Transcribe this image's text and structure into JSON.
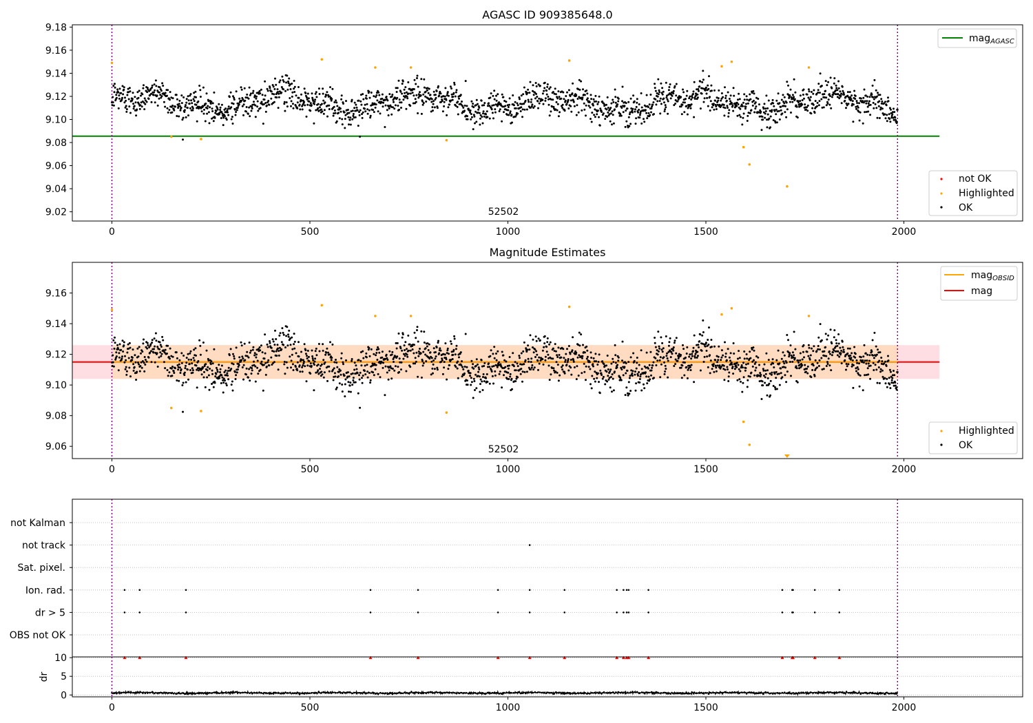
{
  "colors": {
    "ok": "#000000",
    "highlighted": "#FFA500",
    "not_ok": "#FF0000",
    "agasc_line": "#008000",
    "obsid_line": "#FFA500",
    "mag_line": "#FF0000",
    "band_fill": "#FFB6C1",
    "band_obsid_fill": "#FFDAB9",
    "boundary": "#800080"
  },
  "chart_data": [
    {
      "type": "scatter",
      "title": "AGASC ID 909385648.0",
      "xlabel": "",
      "ylabel": "",
      "xlim": [
        -100,
        2300
      ],
      "ylim": [
        9.012,
        9.182
      ],
      "xticks": [
        0,
        500,
        1000,
        1500,
        2000
      ],
      "yticks": [
        9.02,
        9.04,
        9.06,
        9.08,
        9.1,
        9.12,
        9.14,
        9.16,
        9.18
      ],
      "obsid_label": "52502",
      "obsid_label_x": 990,
      "obsid_boundaries": [
        0,
        1984
      ],
      "hlines": [
        {
          "name": "mag_AGASC",
          "y": 9.0855,
          "x": [
            -100,
            2090
          ]
        }
      ],
      "legend_lines": [
        {
          "label": "mag",
          "subscript": "AGASC"
        }
      ],
      "legend_markers": [
        "not OK",
        "Highlighted",
        "OK"
      ],
      "highlighted_points": [
        {
          "x": 0,
          "y": 9.149
        },
        {
          "x": 150,
          "y": 9.085
        },
        {
          "x": 225,
          "y": 9.083
        },
        {
          "x": 530,
          "y": 9.152
        },
        {
          "x": 665,
          "y": 9.145
        },
        {
          "x": 755,
          "y": 9.145
        },
        {
          "x": 845,
          "y": 9.082
        },
        {
          "x": 1155,
          "y": 9.151
        },
        {
          "x": 1540,
          "y": 9.146
        },
        {
          "x": 1565,
          "y": 9.15
        },
        {
          "x": 1595,
          "y": 9.076
        },
        {
          "x": 1610,
          "y": 9.061
        },
        {
          "x": 1705,
          "y": 9.042
        },
        {
          "x": 1760,
          "y": 9.145
        }
      ],
      "ok_series": {
        "n": 1984,
        "x_start": 0,
        "x_end": 1984,
        "mean": 9.115,
        "spread": 0.012
      }
    },
    {
      "type": "scatter",
      "title": "Magnitude Estimates",
      "xlabel": "",
      "ylabel": "",
      "xlim": [
        -100,
        2300
      ],
      "ylim": [
        9.052,
        9.18
      ],
      "xticks": [
        0,
        500,
        1000,
        1500,
        2000
      ],
      "yticks": [
        9.06,
        9.08,
        9.1,
        9.12,
        9.14,
        9.16
      ],
      "obsid_label": "52502",
      "obsid_label_x": 990,
      "obsid_boundaries": [
        0,
        1984
      ],
      "hlines": [
        {
          "name": "mag_OBSID",
          "y": 9.115,
          "x": [
            0,
            1984
          ]
        },
        {
          "name": "mag",
          "y": 9.115,
          "x": [
            -100,
            2090
          ]
        }
      ],
      "band": {
        "y": [
          9.104,
          9.126
        ],
        "x": [
          -100,
          2090
        ]
      },
      "band_obsid": {
        "y": [
          9.104,
          9.126
        ],
        "x": [
          0,
          1984
        ]
      },
      "legend_lines": [
        {
          "label": "mag",
          "subscript": "OBSID"
        },
        {
          "label": "mag",
          "subscript": ""
        }
      ],
      "legend_markers": [
        "Highlighted",
        "OK"
      ],
      "highlighted_points": [
        {
          "x": 0,
          "y": 9.149
        },
        {
          "x": 150,
          "y": 9.085
        },
        {
          "x": 225,
          "y": 9.083
        },
        {
          "x": 530,
          "y": 9.152
        },
        {
          "x": 665,
          "y": 9.145
        },
        {
          "x": 755,
          "y": 9.145
        },
        {
          "x": 845,
          "y": 9.082
        },
        {
          "x": 1155,
          "y": 9.151
        },
        {
          "x": 1540,
          "y": 9.146
        },
        {
          "x": 1565,
          "y": 9.15
        },
        {
          "x": 1595,
          "y": 9.076
        },
        {
          "x": 1610,
          "y": 9.061
        },
        {
          "x": 1760,
          "y": 9.145
        }
      ],
      "clipped_low_points": [
        {
          "x": 1705,
          "y": 9.052
        }
      ]
    },
    {
      "type": "scatter",
      "title": "",
      "xlabel": "",
      "ylabel": "",
      "xlim": [
        -100,
        2300
      ],
      "categories": [
        "not Kalman",
        "not track",
        "Sat. pixel.",
        "Ion. rad.",
        "dr > 5",
        "OBS not OK"
      ],
      "flags": {
        "not track": [
          1055
        ],
        "Ion. rad.": [
          32,
          70,
          187,
          653,
          773,
          975,
          1055,
          1143,
          1275,
          1292,
          1300,
          1305,
          1355,
          1693,
          1718,
          1720,
          1775,
          1837
        ],
        "dr > 5": [
          32,
          70,
          187,
          653,
          773,
          975,
          1055,
          1143,
          1275,
          1292,
          1300,
          1305,
          1355,
          1693,
          1718,
          1720,
          1775,
          1837
        ]
      },
      "obsid_boundaries": [
        0,
        1984
      ]
    },
    {
      "type": "line",
      "title": "",
      "xlabel": "",
      "ylabel": "dr",
      "xlim": [
        -100,
        2300
      ],
      "ylim": [
        -0.5,
        10.2
      ],
      "xticks": [
        0,
        500,
        1000,
        1500,
        2000
      ],
      "yticks": [
        0,
        5,
        10
      ],
      "series": [
        {
          "name": "",
          "x_start": 0,
          "x_end": 1984,
          "mean": 0.55,
          "spread": 0.25
        }
      ],
      "clipped_high_x": [
        32,
        70,
        187,
        653,
        773,
        975,
        1055,
        1143,
        1275,
        1292,
        1300,
        1305,
        1355,
        1693,
        1718,
        1720,
        1775,
        1837
      ],
      "obsid_boundaries": [
        0,
        1984
      ]
    }
  ]
}
